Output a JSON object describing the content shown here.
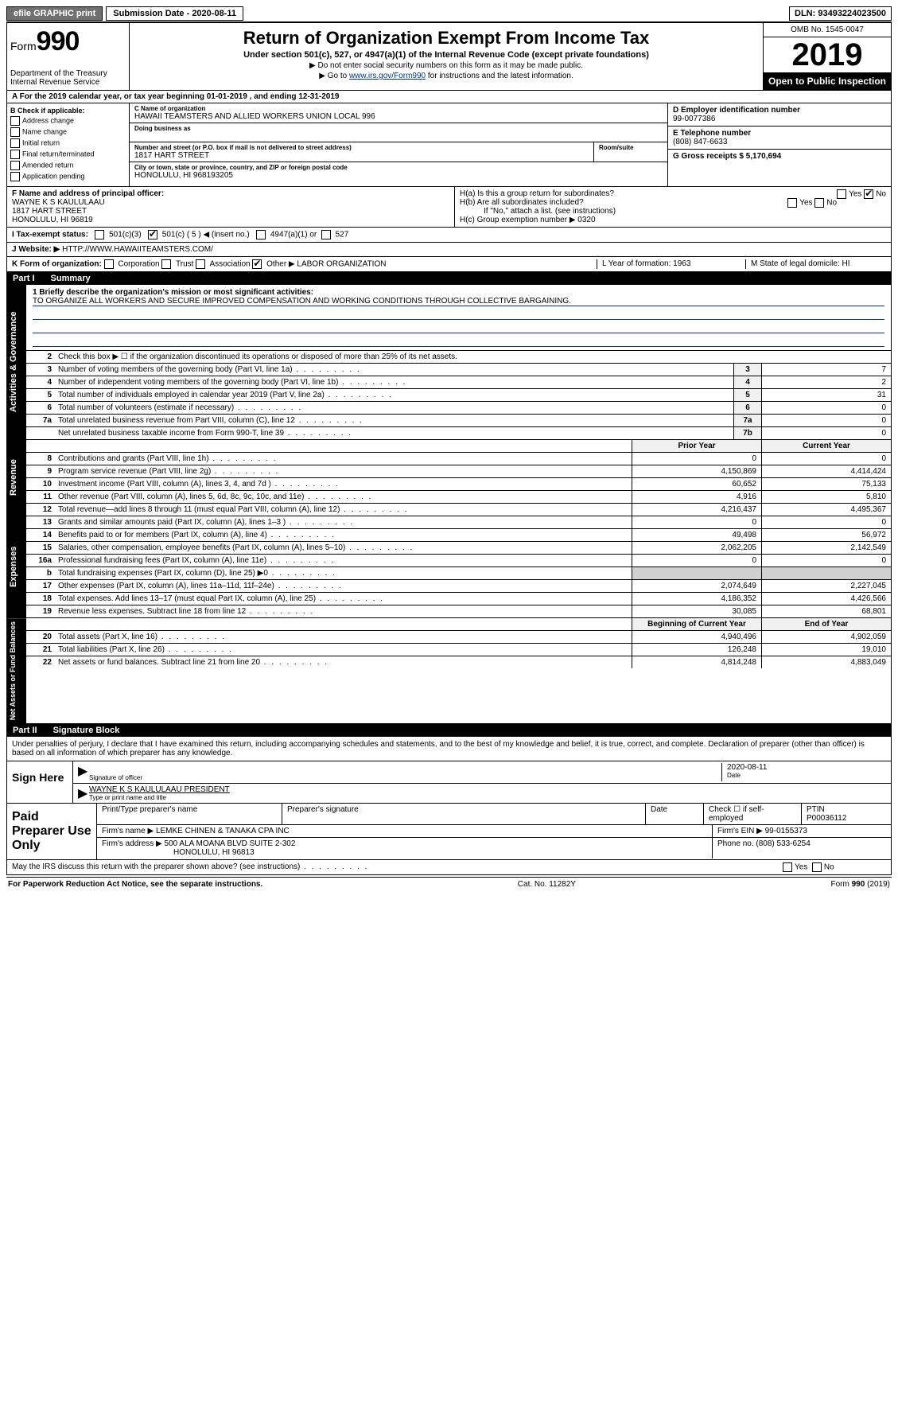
{
  "topbar": {
    "efile": "efile GRAPHIC print",
    "submission_label": "Submission Date - 2020-08-11",
    "dln": "DLN: 93493224023500"
  },
  "header": {
    "form": "Form",
    "form_num": "990",
    "dept": "Department of the Treasury Internal Revenue Service",
    "title": "Return of Organization Exempt From Income Tax",
    "subtitle": "Under section 501(c), 527, or 4947(a)(1) of the Internal Revenue Code (except private foundations)",
    "note1": "▶ Do not enter social security numbers on this form as it may be made public.",
    "note2_pre": "▶ Go to ",
    "note2_link": "www.irs.gov/Form990",
    "note2_post": " for instructions and the latest information.",
    "omb": "OMB No. 1545-0047",
    "year": "2019",
    "open": "Open to Public Inspection"
  },
  "row_a": "A For the 2019 calendar year, or tax year beginning 01-01-2019    , and ending 12-31-2019",
  "section_b": {
    "b_label": "B Check if applicable:",
    "checks": [
      "Address change",
      "Name change",
      "Initial return",
      "Final return/terminated",
      "Amended return",
      "Application pending"
    ],
    "c_label": "C Name of organization",
    "org_name": "HAWAII TEAMSTERS AND ALLIED WORKERS UNION LOCAL 996",
    "dba_label": "Doing business as",
    "addr_label": "Number and street (or P.O. box if mail is not delivered to street address)",
    "addr": "1817 HART STREET",
    "room_label": "Room/suite",
    "city_label": "City or town, state or province, country, and ZIP or foreign postal code",
    "city": "HONOLULU, HI  968193205",
    "d_label": "D Employer identification number",
    "ein": "99-0077386",
    "e_label": "E Telephone number",
    "phone": "(808) 847-6633",
    "g_label": "G Gross receipts $ 5,170,694"
  },
  "fgh": {
    "f_label": "F  Name and address of principal officer:",
    "f_name": "WAYNE K S KAULULAAU",
    "f_addr1": "1817 HART STREET",
    "f_addr2": "HONOLULU, HI  96819",
    "ha": "H(a)  Is this a group return for subordinates?",
    "hb": "H(b)  Are all subordinates included?",
    "hb_note": "If \"No,\" attach a list. (see instructions)",
    "hc": "H(c)  Group exemption number ▶   0320",
    "yes": "Yes",
    "no": "No"
  },
  "i_row": {
    "label": "I  Tax-exempt status:",
    "c3": "501(c)(3)",
    "c": "501(c) ( 5 ) ◀ (insert no.)",
    "a1": "4947(a)(1) or",
    "s527": "527"
  },
  "j_row": {
    "label": "J  Website: ▶",
    "url": "HTTP://WWW.HAWAIITEAMSTERS.COM/"
  },
  "k_row": {
    "label": "K Form of organization:",
    "corp": "Corporation",
    "trust": "Trust",
    "assoc": "Association",
    "other": "Other ▶",
    "other_val": "LABOR ORGANIZATION",
    "l": "L Year of formation: 1963",
    "m": "M State of legal domicile: HI"
  },
  "part1": {
    "header_pt": "Part I",
    "header_txt": "Summary",
    "tab_ag": "Activities & Governance",
    "tab_rev": "Revenue",
    "tab_exp": "Expenses",
    "tab_na": "Net Assets or Fund Balances",
    "line1_label": "1  Briefly describe the organization's mission or most significant activities:",
    "line1_text": "TO ORGANIZE ALL WORKERS AND SECURE IMPROVED COMPENSATION AND WORKING CONDITIONS THROUGH COLLECTIVE BARGAINING.",
    "line2": "Check this box ▶ ☐  if the organization discontinued its operations or disposed of more than 25% of its net assets.",
    "lines": [
      {
        "n": "3",
        "t": "Number of voting members of the governing body (Part VI, line 1a)",
        "box": "3",
        "v": "7"
      },
      {
        "n": "4",
        "t": "Number of independent voting members of the governing body (Part VI, line 1b)",
        "box": "4",
        "v": "2"
      },
      {
        "n": "5",
        "t": "Total number of individuals employed in calendar year 2019 (Part V, line 2a)",
        "box": "5",
        "v": "31"
      },
      {
        "n": "6",
        "t": "Total number of volunteers (estimate if necessary)",
        "box": "6",
        "v": "0"
      },
      {
        "n": "7a",
        "t": "Total unrelated business revenue from Part VIII, column (C), line 12",
        "box": "7a",
        "v": "0"
      },
      {
        "n": "",
        "t": "Net unrelated business taxable income from Form 990-T, line 39",
        "box": "7b",
        "v": "0"
      }
    ],
    "col_prior": "Prior Year",
    "col_curr": "Current Year",
    "rev_lines": [
      {
        "n": "8",
        "t": "Contributions and grants (Part VIII, line 1h)",
        "p": "0",
        "c": "0"
      },
      {
        "n": "9",
        "t": "Program service revenue (Part VIII, line 2g)",
        "p": "4,150,869",
        "c": "4,414,424"
      },
      {
        "n": "10",
        "t": "Investment income (Part VIII, column (A), lines 3, 4, and 7d )",
        "p": "60,652",
        "c": "75,133"
      },
      {
        "n": "11",
        "t": "Other revenue (Part VIII, column (A), lines 5, 6d, 8c, 9c, 10c, and 11e)",
        "p": "4,916",
        "c": "5,810"
      },
      {
        "n": "12",
        "t": "Total revenue—add lines 8 through 11 (must equal Part VIII, column (A), line 12)",
        "p": "4,216,437",
        "c": "4,495,367"
      }
    ],
    "exp_lines": [
      {
        "n": "13",
        "t": "Grants and similar amounts paid (Part IX, column (A), lines 1–3 )",
        "p": "0",
        "c": "0"
      },
      {
        "n": "14",
        "t": "Benefits paid to or for members (Part IX, column (A), line 4)",
        "p": "49,498",
        "c": "56,972"
      },
      {
        "n": "15",
        "t": "Salaries, other compensation, employee benefits (Part IX, column (A), lines 5–10)",
        "p": "2,062,205",
        "c": "2,142,549"
      },
      {
        "n": "16a",
        "t": "Professional fundraising fees (Part IX, column (A), line 11e)",
        "p": "0",
        "c": "0"
      },
      {
        "n": "b",
        "t": "Total fundraising expenses (Part IX, column (D), line 25) ▶0",
        "p": "",
        "c": ""
      },
      {
        "n": "17",
        "t": "Other expenses (Part IX, column (A), lines 11a–11d, 11f–24e)",
        "p": "2,074,649",
        "c": "2,227,045"
      },
      {
        "n": "18",
        "t": "Total expenses. Add lines 13–17 (must equal Part IX, column (A), line 25)",
        "p": "4,186,352",
        "c": "4,426,566"
      },
      {
        "n": "19",
        "t": "Revenue less expenses. Subtract line 18 from line 12",
        "p": "30,085",
        "c": "68,801"
      }
    ],
    "col_beg": "Beginning of Current Year",
    "col_end": "End of Year",
    "na_lines": [
      {
        "n": "20",
        "t": "Total assets (Part X, line 16)",
        "p": "4,940,496",
        "c": "4,902,059"
      },
      {
        "n": "21",
        "t": "Total liabilities (Part X, line 26)",
        "p": "126,248",
        "c": "19,010"
      },
      {
        "n": "22",
        "t": "Net assets or fund balances. Subtract line 21 from line 20",
        "p": "4,814,248",
        "c": "4,883,049"
      }
    ]
  },
  "part2": {
    "header_pt": "Part II",
    "header_txt": "Signature Block",
    "perjury": "Under penalties of perjury, I declare that I have examined this return, including accompanying schedules and statements, and to the best of my knowledge and belief, it is true, correct, and complete. Declaration of preparer (other than officer) is based on all information of which preparer has any knowledge.",
    "sign_here": "Sign Here",
    "sig_officer": "Signature of officer",
    "sig_date": "2020-08-11",
    "date_label": "Date",
    "officer_name": "WAYNE K S KAULULAAU  PRESIDENT",
    "type_name": "Type or print name and title"
  },
  "paid": {
    "label": "Paid Preparer Use Only",
    "h1": "Print/Type preparer's name",
    "h2": "Preparer's signature",
    "h3": "Date",
    "h4_check": "Check ☐ if self-employed",
    "h5": "PTIN",
    "ptin": "P00036112",
    "firm_label": "Firm's name    ▶",
    "firm": "LEMKE CHINEN & TANAKA CPA INC",
    "firm_ein_label": "Firm's EIN ▶",
    "firm_ein": "99-0155373",
    "firm_addr_label": "Firm's address ▶",
    "firm_addr1": "500 ALA MOANA BLVD SUITE 2-302",
    "firm_addr2": "HONOLULU, HI  96813",
    "phone_label": "Phone no.",
    "phone": "(808) 533-6254"
  },
  "discuss": {
    "q": "May the IRS discuss this return with the preparer shown above? (see instructions)",
    "yes": "Yes",
    "no": "No"
  },
  "footer": {
    "left": "For Paperwork Reduction Act Notice, see the separate instructions.",
    "mid": "Cat. No. 11282Y",
    "right": "Form 990 (2019)"
  }
}
